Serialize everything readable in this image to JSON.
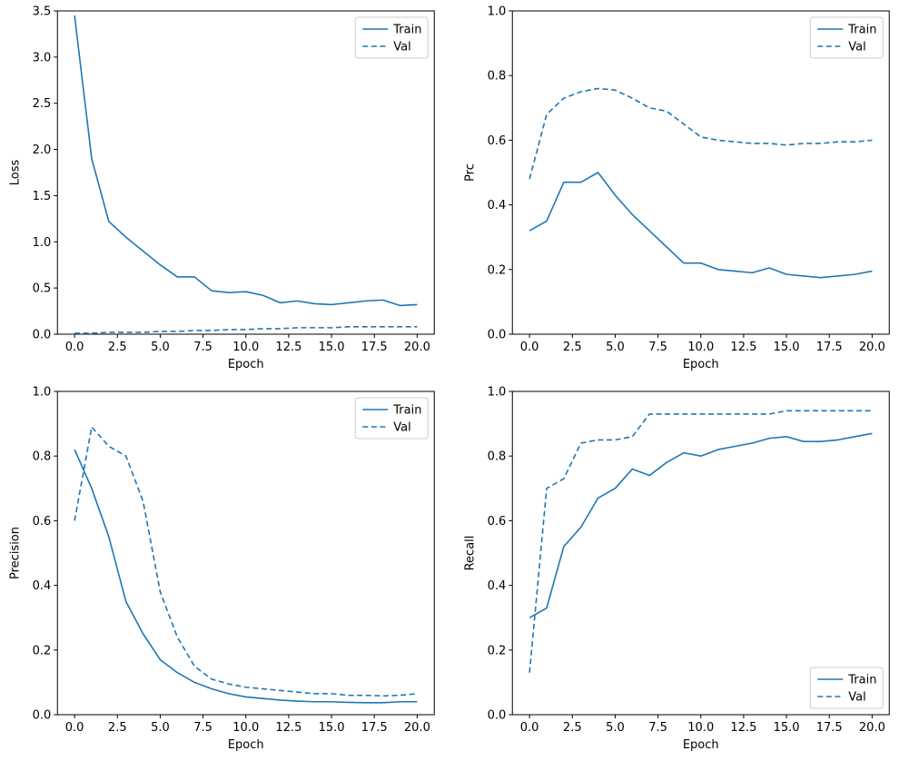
{
  "figure": {
    "background": "#ffffff",
    "line_color": "#1f77b4",
    "axis_color": "#000000",
    "legend_border_color": "#cccccc"
  },
  "chart_data": [
    {
      "type": "line",
      "name": "loss",
      "title": "",
      "xlabel": "Epoch",
      "ylabel": "Loss",
      "xlim": [
        -1,
        21
      ],
      "ylim": [
        0,
        3.5
      ],
      "xticks": [
        0,
        2.5,
        5,
        7.5,
        10,
        12.5,
        15,
        17.5,
        20
      ],
      "yticks": [
        0,
        0.5,
        1,
        1.5,
        2,
        2.5,
        3,
        3.5
      ],
      "grid": false,
      "legend_position": "top-right",
      "x": [
        0,
        1,
        2,
        3,
        4,
        5,
        6,
        7,
        8,
        9,
        10,
        11,
        12,
        13,
        14,
        15,
        16,
        17,
        18,
        19,
        20
      ],
      "series": [
        {
          "name": "Train",
          "style": "solid",
          "values": [
            3.45,
            1.9,
            1.22,
            1.05,
            0.9,
            0.75,
            0.62,
            0.62,
            0.47,
            0.45,
            0.46,
            0.42,
            0.34,
            0.36,
            0.33,
            0.32,
            0.34,
            0.36,
            0.37,
            0.31,
            0.32
          ]
        },
        {
          "name": "Val",
          "style": "dashed",
          "values": [
            0.01,
            0.01,
            0.02,
            0.02,
            0.02,
            0.03,
            0.03,
            0.04,
            0.04,
            0.05,
            0.05,
            0.06,
            0.06,
            0.07,
            0.07,
            0.07,
            0.08,
            0.08,
            0.08,
            0.08,
            0.08
          ]
        }
      ]
    },
    {
      "type": "line",
      "name": "prc",
      "title": "",
      "xlabel": "Epoch",
      "ylabel": "Prc",
      "xlim": [
        -1,
        21
      ],
      "ylim": [
        0,
        1.0
      ],
      "xticks": [
        0,
        2.5,
        5,
        7.5,
        10,
        12.5,
        15,
        17.5,
        20
      ],
      "yticks": [
        0,
        0.2,
        0.4,
        0.6,
        0.8,
        1.0
      ],
      "grid": false,
      "legend_position": "top-right",
      "x": [
        0,
        1,
        2,
        3,
        4,
        5,
        6,
        7,
        8,
        9,
        10,
        11,
        12,
        13,
        14,
        15,
        16,
        17,
        18,
        19,
        20
      ],
      "series": [
        {
          "name": "Train",
          "style": "solid",
          "values": [
            0.32,
            0.35,
            0.47,
            0.47,
            0.5,
            0.43,
            0.37,
            0.32,
            0.27,
            0.22,
            0.22,
            0.2,
            0.195,
            0.19,
            0.205,
            0.185,
            0.18,
            0.175,
            0.18,
            0.185,
            0.195
          ]
        },
        {
          "name": "Val",
          "style": "dashed",
          "values": [
            0.48,
            0.68,
            0.73,
            0.75,
            0.76,
            0.755,
            0.73,
            0.7,
            0.69,
            0.65,
            0.61,
            0.6,
            0.595,
            0.59,
            0.59,
            0.585,
            0.59,
            0.59,
            0.595,
            0.595,
            0.6
          ]
        }
      ]
    },
    {
      "type": "line",
      "name": "precision",
      "title": "",
      "xlabel": "Epoch",
      "ylabel": "Precision",
      "xlim": [
        -1,
        21
      ],
      "ylim": [
        0,
        1.0
      ],
      "xticks": [
        0,
        2.5,
        5,
        7.5,
        10,
        12.5,
        15,
        17.5,
        20
      ],
      "yticks": [
        0,
        0.2,
        0.4,
        0.6,
        0.8,
        1.0
      ],
      "grid": false,
      "legend_position": "top-right",
      "x": [
        0,
        1,
        2,
        3,
        4,
        5,
        6,
        7,
        8,
        9,
        10,
        11,
        12,
        13,
        14,
        15,
        16,
        17,
        18,
        19,
        20
      ],
      "series": [
        {
          "name": "Train",
          "style": "solid",
          "values": [
            0.82,
            0.7,
            0.55,
            0.35,
            0.25,
            0.17,
            0.13,
            0.1,
            0.08,
            0.065,
            0.055,
            0.05,
            0.045,
            0.042,
            0.04,
            0.04,
            0.038,
            0.037,
            0.037,
            0.04,
            0.04
          ]
        },
        {
          "name": "Val",
          "style": "dashed",
          "values": [
            0.6,
            0.89,
            0.83,
            0.8,
            0.66,
            0.38,
            0.24,
            0.15,
            0.11,
            0.095,
            0.085,
            0.08,
            0.075,
            0.07,
            0.065,
            0.065,
            0.06,
            0.06,
            0.058,
            0.06,
            0.065
          ]
        }
      ]
    },
    {
      "type": "line",
      "name": "recall",
      "title": "",
      "xlabel": "Epoch",
      "ylabel": "Recall",
      "xlim": [
        -1,
        21
      ],
      "ylim": [
        0,
        1.0
      ],
      "xticks": [
        0,
        2.5,
        5,
        7.5,
        10,
        12.5,
        15,
        17.5,
        20
      ],
      "yticks": [
        0,
        0.2,
        0.4,
        0.6,
        0.8,
        1.0
      ],
      "grid": false,
      "legend_position": "bottom-right",
      "x": [
        0,
        1,
        2,
        3,
        4,
        5,
        6,
        7,
        8,
        9,
        10,
        11,
        12,
        13,
        14,
        15,
        16,
        17,
        18,
        19,
        20
      ],
      "series": [
        {
          "name": "Train",
          "style": "solid",
          "values": [
            0.3,
            0.33,
            0.52,
            0.58,
            0.67,
            0.7,
            0.76,
            0.74,
            0.78,
            0.81,
            0.8,
            0.82,
            0.83,
            0.84,
            0.855,
            0.86,
            0.845,
            0.845,
            0.85,
            0.86,
            0.87
          ]
        },
        {
          "name": "Val",
          "style": "dashed",
          "values": [
            0.13,
            0.7,
            0.73,
            0.84,
            0.85,
            0.85,
            0.86,
            0.93,
            0.93,
            0.93,
            0.93,
            0.93,
            0.93,
            0.93,
            0.93,
            0.94,
            0.94,
            0.94,
            0.94,
            0.94,
            0.94
          ]
        }
      ]
    }
  ]
}
